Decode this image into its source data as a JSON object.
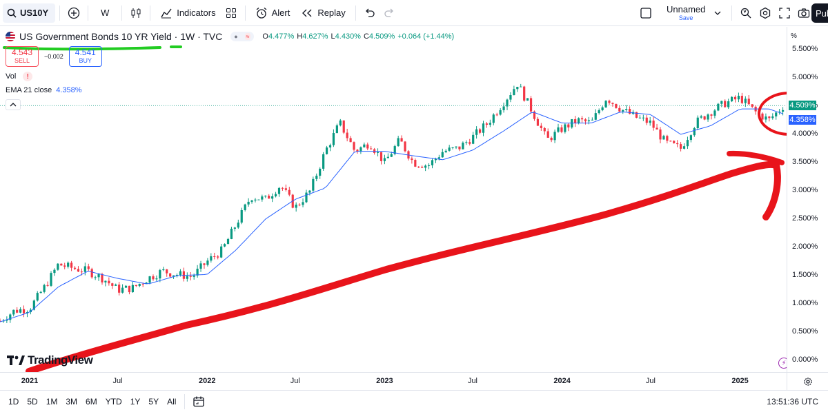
{
  "toolbar": {
    "symbol": "US10Y",
    "interval": "W",
    "indicators_label": "Indicators",
    "alert_label": "Alert",
    "replay_label": "Replay",
    "layout_name": "Unnamed",
    "layout_save": "Save",
    "publish_label": "Pub"
  },
  "legend": {
    "title": "US Government Bonds 10 YR Yield · 1W · TVC",
    "ohlc": [
      {
        "k": "O",
        "v": "4.477%"
      },
      {
        "k": "H",
        "v": "4.627%"
      },
      {
        "k": "L",
        "v": "4.430%"
      },
      {
        "k": "C",
        "v": "4.509%"
      },
      {
        "k": "",
        "v": "+0.064 (+1.44%)"
      }
    ],
    "sell_price": "4.543",
    "sell_label": "SELL",
    "spread": "−0.002",
    "buy_price": "4.541",
    "buy_label": "BUY",
    "vol_label": "Vol",
    "warn_symbol": "!",
    "ema_label": "EMA 21 close",
    "ema_value": "4.358%"
  },
  "price_scale": {
    "unit": "%",
    "ticks": [
      "5.500%",
      "5.000%",
      "4.500%",
      "4.000%",
      "3.500%",
      "3.000%",
      "2.500%",
      "2.000%",
      "1.500%",
      "1.000%",
      "0.500%",
      "0.000%"
    ],
    "last_price": "4.509%",
    "ema_price": "4.358%"
  },
  "time_axis": {
    "labels": [
      {
        "t": "2021",
        "year": true
      },
      {
        "t": "Jul",
        "year": false
      },
      {
        "t": "2022",
        "year": true
      },
      {
        "t": "Jul",
        "year": false
      },
      {
        "t": "2023",
        "year": true
      },
      {
        "t": "Jul",
        "year": false
      },
      {
        "t": "2024",
        "year": true
      },
      {
        "t": "Jul",
        "year": false
      },
      {
        "t": "2025",
        "year": true
      }
    ]
  },
  "bottombar": {
    "timeframes": [
      "1D",
      "5D",
      "1M",
      "3M",
      "6M",
      "YTD",
      "1Y",
      "5Y",
      "All"
    ],
    "clock": "13:51:36 UTC"
  },
  "branding": {
    "logo_text": "TradingView"
  },
  "colors": {
    "up": "#089981",
    "down": "#f23645",
    "ema": "#2962ff",
    "annotation_red": "#e8141b",
    "annotation_green": "#22cc22"
  },
  "chart_data": {
    "type": "candlestick",
    "ylim": [
      0.0,
      5.5
    ],
    "x_range": [
      "2020-11",
      "2025-04"
    ],
    "close_path": [
      [
        "2020-11",
        0.7
      ],
      [
        "2020-12",
        0.88
      ],
      [
        "2021-01",
        0.92
      ],
      [
        "2021-02",
        1.3
      ],
      [
        "2021-03",
        1.7
      ],
      [
        "2021-04",
        1.63
      ],
      [
        "2021-05",
        1.58
      ],
      [
        "2021-06",
        1.45
      ],
      [
        "2021-07",
        1.25
      ],
      [
        "2021-08",
        1.28
      ],
      [
        "2021-09",
        1.45
      ],
      [
        "2021-10",
        1.58
      ],
      [
        "2021-11",
        1.52
      ],
      [
        "2021-12",
        1.48
      ],
      [
        "2022-01",
        1.75
      ],
      [
        "2022-02",
        1.95
      ],
      [
        "2022-03",
        2.4
      ],
      [
        "2022-04",
        2.9
      ],
      [
        "2022-05",
        2.85
      ],
      [
        "2022-06",
        3.1
      ],
      [
        "2022-07",
        2.7
      ],
      [
        "2022-08",
        3.0
      ],
      [
        "2022-09",
        3.7
      ],
      [
        "2022-10",
        4.2
      ],
      [
        "2022-11",
        3.7
      ],
      [
        "2022-12",
        3.85
      ],
      [
        "2023-01",
        3.5
      ],
      [
        "2023-02",
        3.9
      ],
      [
        "2023-03",
        3.5
      ],
      [
        "2023-04",
        3.45
      ],
      [
        "2023-05",
        3.7
      ],
      [
        "2023-06",
        3.75
      ],
      [
        "2023-07",
        3.95
      ],
      [
        "2023-08",
        4.2
      ],
      [
        "2023-09",
        4.55
      ],
      [
        "2023-10",
        4.9
      ],
      [
        "2023-11",
        4.4
      ],
      [
        "2023-12",
        3.9
      ],
      [
        "2024-01",
        4.1
      ],
      [
        "2024-02",
        4.25
      ],
      [
        "2024-03",
        4.2
      ],
      [
        "2024-04",
        4.65
      ],
      [
        "2024-05",
        4.45
      ],
      [
        "2024-06",
        4.3
      ],
      [
        "2024-07",
        4.2
      ],
      [
        "2024-08",
        3.85
      ],
      [
        "2024-09",
        3.75
      ],
      [
        "2024-10",
        4.2
      ],
      [
        "2024-11",
        4.4
      ],
      [
        "2024-12",
        4.55
      ],
      [
        "2025-01",
        4.65
      ],
      [
        "2025-02",
        4.4
      ],
      [
        "2025-03",
        4.25
      ],
      [
        "2025-04",
        4.51
      ]
    ],
    "ema_path": [
      [
        "2020-11",
        0.68
      ],
      [
        "2021-01",
        0.85
      ],
      [
        "2021-03",
        1.3
      ],
      [
        "2021-05",
        1.58
      ],
      [
        "2021-07",
        1.45
      ],
      [
        "2021-09",
        1.35
      ],
      [
        "2021-11",
        1.5
      ],
      [
        "2022-01",
        1.52
      ],
      [
        "2022-03",
        1.95
      ],
      [
        "2022-05",
        2.5
      ],
      [
        "2022-07",
        2.85
      ],
      [
        "2022-09",
        3.05
      ],
      [
        "2022-11",
        3.7
      ],
      [
        "2023-01",
        3.7
      ],
      [
        "2023-03",
        3.62
      ],
      [
        "2023-05",
        3.55
      ],
      [
        "2023-07",
        3.72
      ],
      [
        "2023-09",
        4.05
      ],
      [
        "2023-11",
        4.4
      ],
      [
        "2024-01",
        4.2
      ],
      [
        "2024-03",
        4.2
      ],
      [
        "2024-05",
        4.4
      ],
      [
        "2024-07",
        4.35
      ],
      [
        "2024-09",
        4.0
      ],
      [
        "2024-11",
        4.15
      ],
      [
        "2025-01",
        4.45
      ],
      [
        "2025-03",
        4.45
      ],
      [
        "2025-04",
        4.36
      ]
    ],
    "last_close": 4.509,
    "ema_last": 4.358
  }
}
